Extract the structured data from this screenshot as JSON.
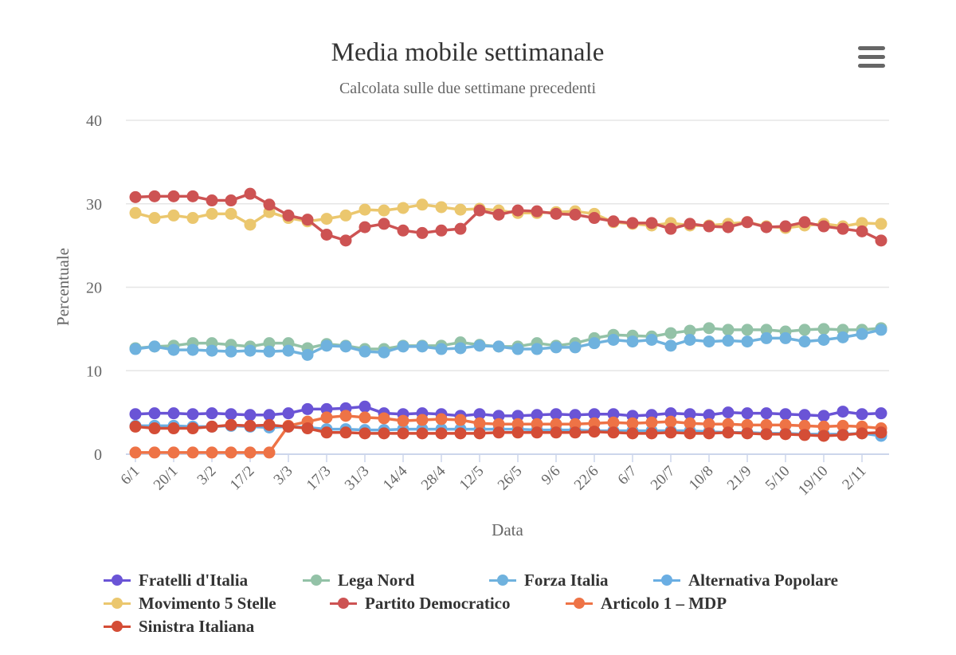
{
  "chart_data": {
    "type": "line",
    "title": "Media mobile settimanale",
    "subtitle": "Calcolata sulle due settimane precedenti",
    "xlabel": "Data",
    "ylabel": "Percentuale",
    "ylim": [
      0,
      40
    ],
    "y_ticks": [
      "0",
      "10",
      "20",
      "30",
      "40"
    ],
    "grid": true,
    "legend_position": "bottom",
    "x_tick_labels": [
      "6/1",
      "20/1",
      "3/2",
      "17/2",
      "3/3",
      "17/3",
      "31/3",
      "14/4",
      "28/4",
      "12/5",
      "26/5",
      "9/6",
      "22/6",
      "6/7",
      "20/7",
      "10/8",
      "21/9",
      "5/10",
      "19/10",
      "2/11"
    ],
    "x_tick_every": 2,
    "x": [
      "6/1",
      "13/1",
      "20/1",
      "27/1",
      "3/2",
      "10/2",
      "17/2",
      "24/2",
      "3/3",
      "10/3",
      "17/3",
      "24/3",
      "31/3",
      "7/4",
      "14/4",
      "21/4",
      "28/4",
      "5/5",
      "12/5",
      "19/5",
      "26/5",
      "2/6",
      "9/6",
      "16/6",
      "22/6",
      "29/6",
      "6/7",
      "13/7",
      "20/7",
      "27/7",
      "10/8",
      "15/9",
      "21/9",
      "28/9",
      "5/10",
      "12/10",
      "19/10",
      "26/10",
      "2/11",
      "9/11"
    ],
    "series": [
      {
        "name": "Fratelli d'Italia",
        "color": "#6a54d6",
        "values": [
          4.8,
          4.9,
          4.9,
          4.8,
          4.9,
          4.8,
          4.7,
          4.7,
          4.9,
          5.4,
          5.4,
          5.5,
          5.7,
          4.9,
          4.8,
          4.9,
          4.8,
          4.6,
          4.8,
          4.6,
          4.6,
          4.7,
          4.8,
          4.7,
          4.8,
          4.8,
          4.6,
          4.7,
          4.9,
          4.8,
          4.7,
          5.0,
          4.9,
          4.9,
          4.8,
          4.7,
          4.6,
          5.1,
          4.8,
          4.9
        ]
      },
      {
        "name": "Lega Nord",
        "color": "#93c2a7",
        "values": [
          12.7,
          12.9,
          13.0,
          13.3,
          13.3,
          13.1,
          12.9,
          13.3,
          13.3,
          12.7,
          13.2,
          13.0,
          12.6,
          12.6,
          13.0,
          13.0,
          13.0,
          13.4,
          13.1,
          12.9,
          12.9,
          13.3,
          13.0,
          13.3,
          13.9,
          14.3,
          14.2,
          14.1,
          14.5,
          14.8,
          15.1,
          14.9,
          14.9,
          14.9,
          14.7,
          14.9,
          15.0,
          14.9,
          14.9,
          15.1
        ]
      },
      {
        "name": "Forza Italia",
        "color": "#6fb2de",
        "values": [
          12.6,
          12.9,
          12.5,
          12.5,
          12.4,
          12.3,
          12.4,
          12.3,
          12.4,
          11.9,
          13.0,
          12.9,
          12.3,
          12.2,
          12.9,
          12.9,
          12.6,
          12.7,
          13.0,
          12.9,
          12.6,
          12.6,
          12.8,
          12.8,
          13.3,
          13.7,
          13.5,
          13.7,
          13.0,
          13.7,
          13.5,
          13.6,
          13.5,
          13.9,
          13.9,
          13.5,
          13.7,
          14.0,
          14.4,
          14.9
        ]
      },
      {
        "name": "Alternativa Popolare",
        "color": "#6aaee3",
        "values": [
          3.4,
          3.4,
          3.4,
          3.3,
          3.3,
          3.4,
          3.3,
          3.2,
          3.3,
          3.2,
          3.0,
          3.0,
          2.9,
          2.9,
          3.0,
          3.0,
          3.0,
          3.0,
          3.0,
          3.0,
          3.0,
          2.9,
          2.9,
          2.9,
          2.8,
          2.8,
          2.8,
          2.8,
          2.8,
          2.8,
          2.7,
          2.6,
          2.6,
          2.5,
          2.5,
          2.4,
          2.4,
          2.4,
          2.5,
          2.2
        ]
      },
      {
        "name": "Movimento 5 Stelle",
        "color": "#ebc76e",
        "values": [
          28.9,
          28.3,
          28.6,
          28.3,
          28.8,
          28.8,
          27.5,
          29.0,
          28.3,
          27.9,
          28.2,
          28.6,
          29.3,
          29.2,
          29.5,
          29.9,
          29.6,
          29.3,
          29.4,
          29.2,
          28.9,
          28.9,
          29.0,
          29.1,
          28.8,
          27.8,
          27.6,
          27.4,
          27.7,
          27.4,
          27.4,
          27.6,
          27.8,
          27.3,
          27.1,
          27.4,
          27.6,
          27.3,
          27.7,
          27.6
        ]
      },
      {
        "name": "Partito Democratico",
        "color": "#cd5353",
        "values": [
          30.8,
          30.9,
          30.9,
          30.9,
          30.4,
          30.4,
          31.2,
          29.9,
          28.6,
          28.1,
          26.3,
          25.6,
          27.2,
          27.6,
          26.8,
          26.5,
          26.8,
          27.0,
          29.2,
          28.7,
          29.2,
          29.1,
          28.8,
          28.7,
          28.3,
          27.9,
          27.7,
          27.7,
          27.0,
          27.6,
          27.3,
          27.2,
          27.8,
          27.2,
          27.3,
          27.8,
          27.3,
          27.0,
          26.7,
          25.6
        ]
      },
      {
        "name": "Articolo 1 – MDP",
        "color": "#ee7346",
        "values": [
          0.2,
          0.2,
          0.2,
          0.2,
          0.2,
          0.2,
          0.2,
          0.2,
          3.4,
          3.9,
          4.4,
          4.6,
          4.4,
          4.3,
          4.0,
          4.1,
          4.2,
          4.1,
          3.7,
          3.6,
          3.6,
          3.6,
          3.6,
          3.6,
          3.7,
          3.8,
          3.7,
          3.8,
          3.9,
          3.7,
          3.6,
          3.6,
          3.5,
          3.5,
          3.5,
          3.4,
          3.3,
          3.4,
          3.3,
          3.1
        ]
      },
      {
        "name": "Sinistra Italiana",
        "color": "#d44d36",
        "values": [
          3.3,
          3.1,
          3.1,
          3.1,
          3.3,
          3.5,
          3.4,
          3.5,
          3.3,
          3.1,
          2.6,
          2.6,
          2.5,
          2.5,
          2.5,
          2.5,
          2.5,
          2.5,
          2.5,
          2.6,
          2.6,
          2.6,
          2.6,
          2.6,
          2.7,
          2.6,
          2.5,
          2.5,
          2.6,
          2.5,
          2.5,
          2.6,
          2.5,
          2.4,
          2.4,
          2.3,
          2.2,
          2.3,
          2.5,
          2.6
        ]
      }
    ]
  },
  "legend": {
    "items": [
      {
        "label": "Fratelli d'Italia",
        "color": "#6a54d6"
      },
      {
        "label": "Lega Nord",
        "color": "#93c2a7"
      },
      {
        "label": "Forza Italia",
        "color": "#6fb2de"
      },
      {
        "label": "Alternativa Popolare",
        "color": "#6aaee3"
      },
      {
        "label": "Movimento 5 Stelle",
        "color": "#ebc76e"
      },
      {
        "label": "Partito Democratico",
        "color": "#cd5353"
      },
      {
        "label": "Articolo 1 – MDP",
        "color": "#ee7346"
      },
      {
        "label": "Sinistra Italiana",
        "color": "#d44d36"
      }
    ]
  },
  "toolbar": {
    "menu_icon": "hamburger-menu-icon"
  }
}
